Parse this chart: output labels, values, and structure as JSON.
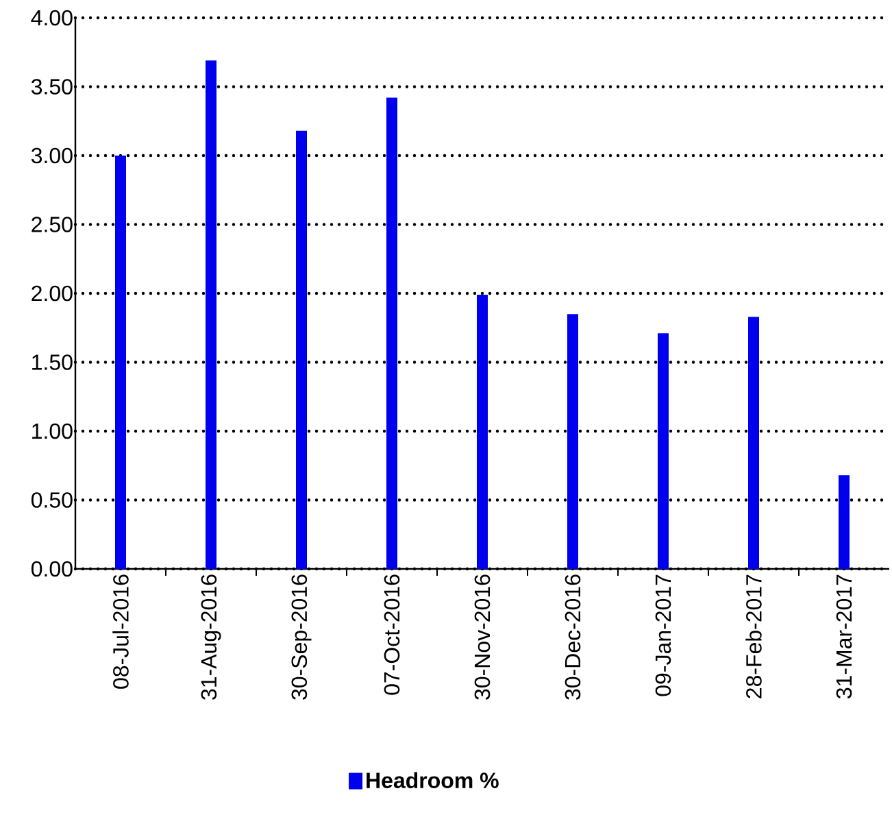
{
  "chart_data": {
    "type": "bar",
    "categories": [
      "08-Jul-2016",
      "31-Aug-2016",
      "30-Sep-2016",
      "07-Oct-2016",
      "30-Nov-2016",
      "30-Dec-2016",
      "09-Jan-2017",
      "28-Feb-2017",
      "31-Mar-2017"
    ],
    "series": [
      {
        "name": "Headroom %",
        "color": "#0000ee",
        "values": [
          3.0,
          3.69,
          3.18,
          3.42,
          1.99,
          1.85,
          1.71,
          1.83,
          0.68
        ]
      }
    ],
    "ylim": [
      0,
      4
    ],
    "yticks": [
      {
        "value": 0,
        "label": "0.00"
      },
      {
        "value": 0.5,
        "label": "0.50"
      },
      {
        "value": 1,
        "label": "1.00"
      },
      {
        "value": 1.5,
        "label": "1.50"
      },
      {
        "value": 2,
        "label": "2.00"
      },
      {
        "value": 2.5,
        "label": "2.50"
      },
      {
        "value": 3,
        "label": "3.00"
      },
      {
        "value": 3.5,
        "label": "3.50"
      },
      {
        "value": 4,
        "label": "4.00"
      }
    ],
    "grid": "y",
    "legend": "bottom"
  }
}
